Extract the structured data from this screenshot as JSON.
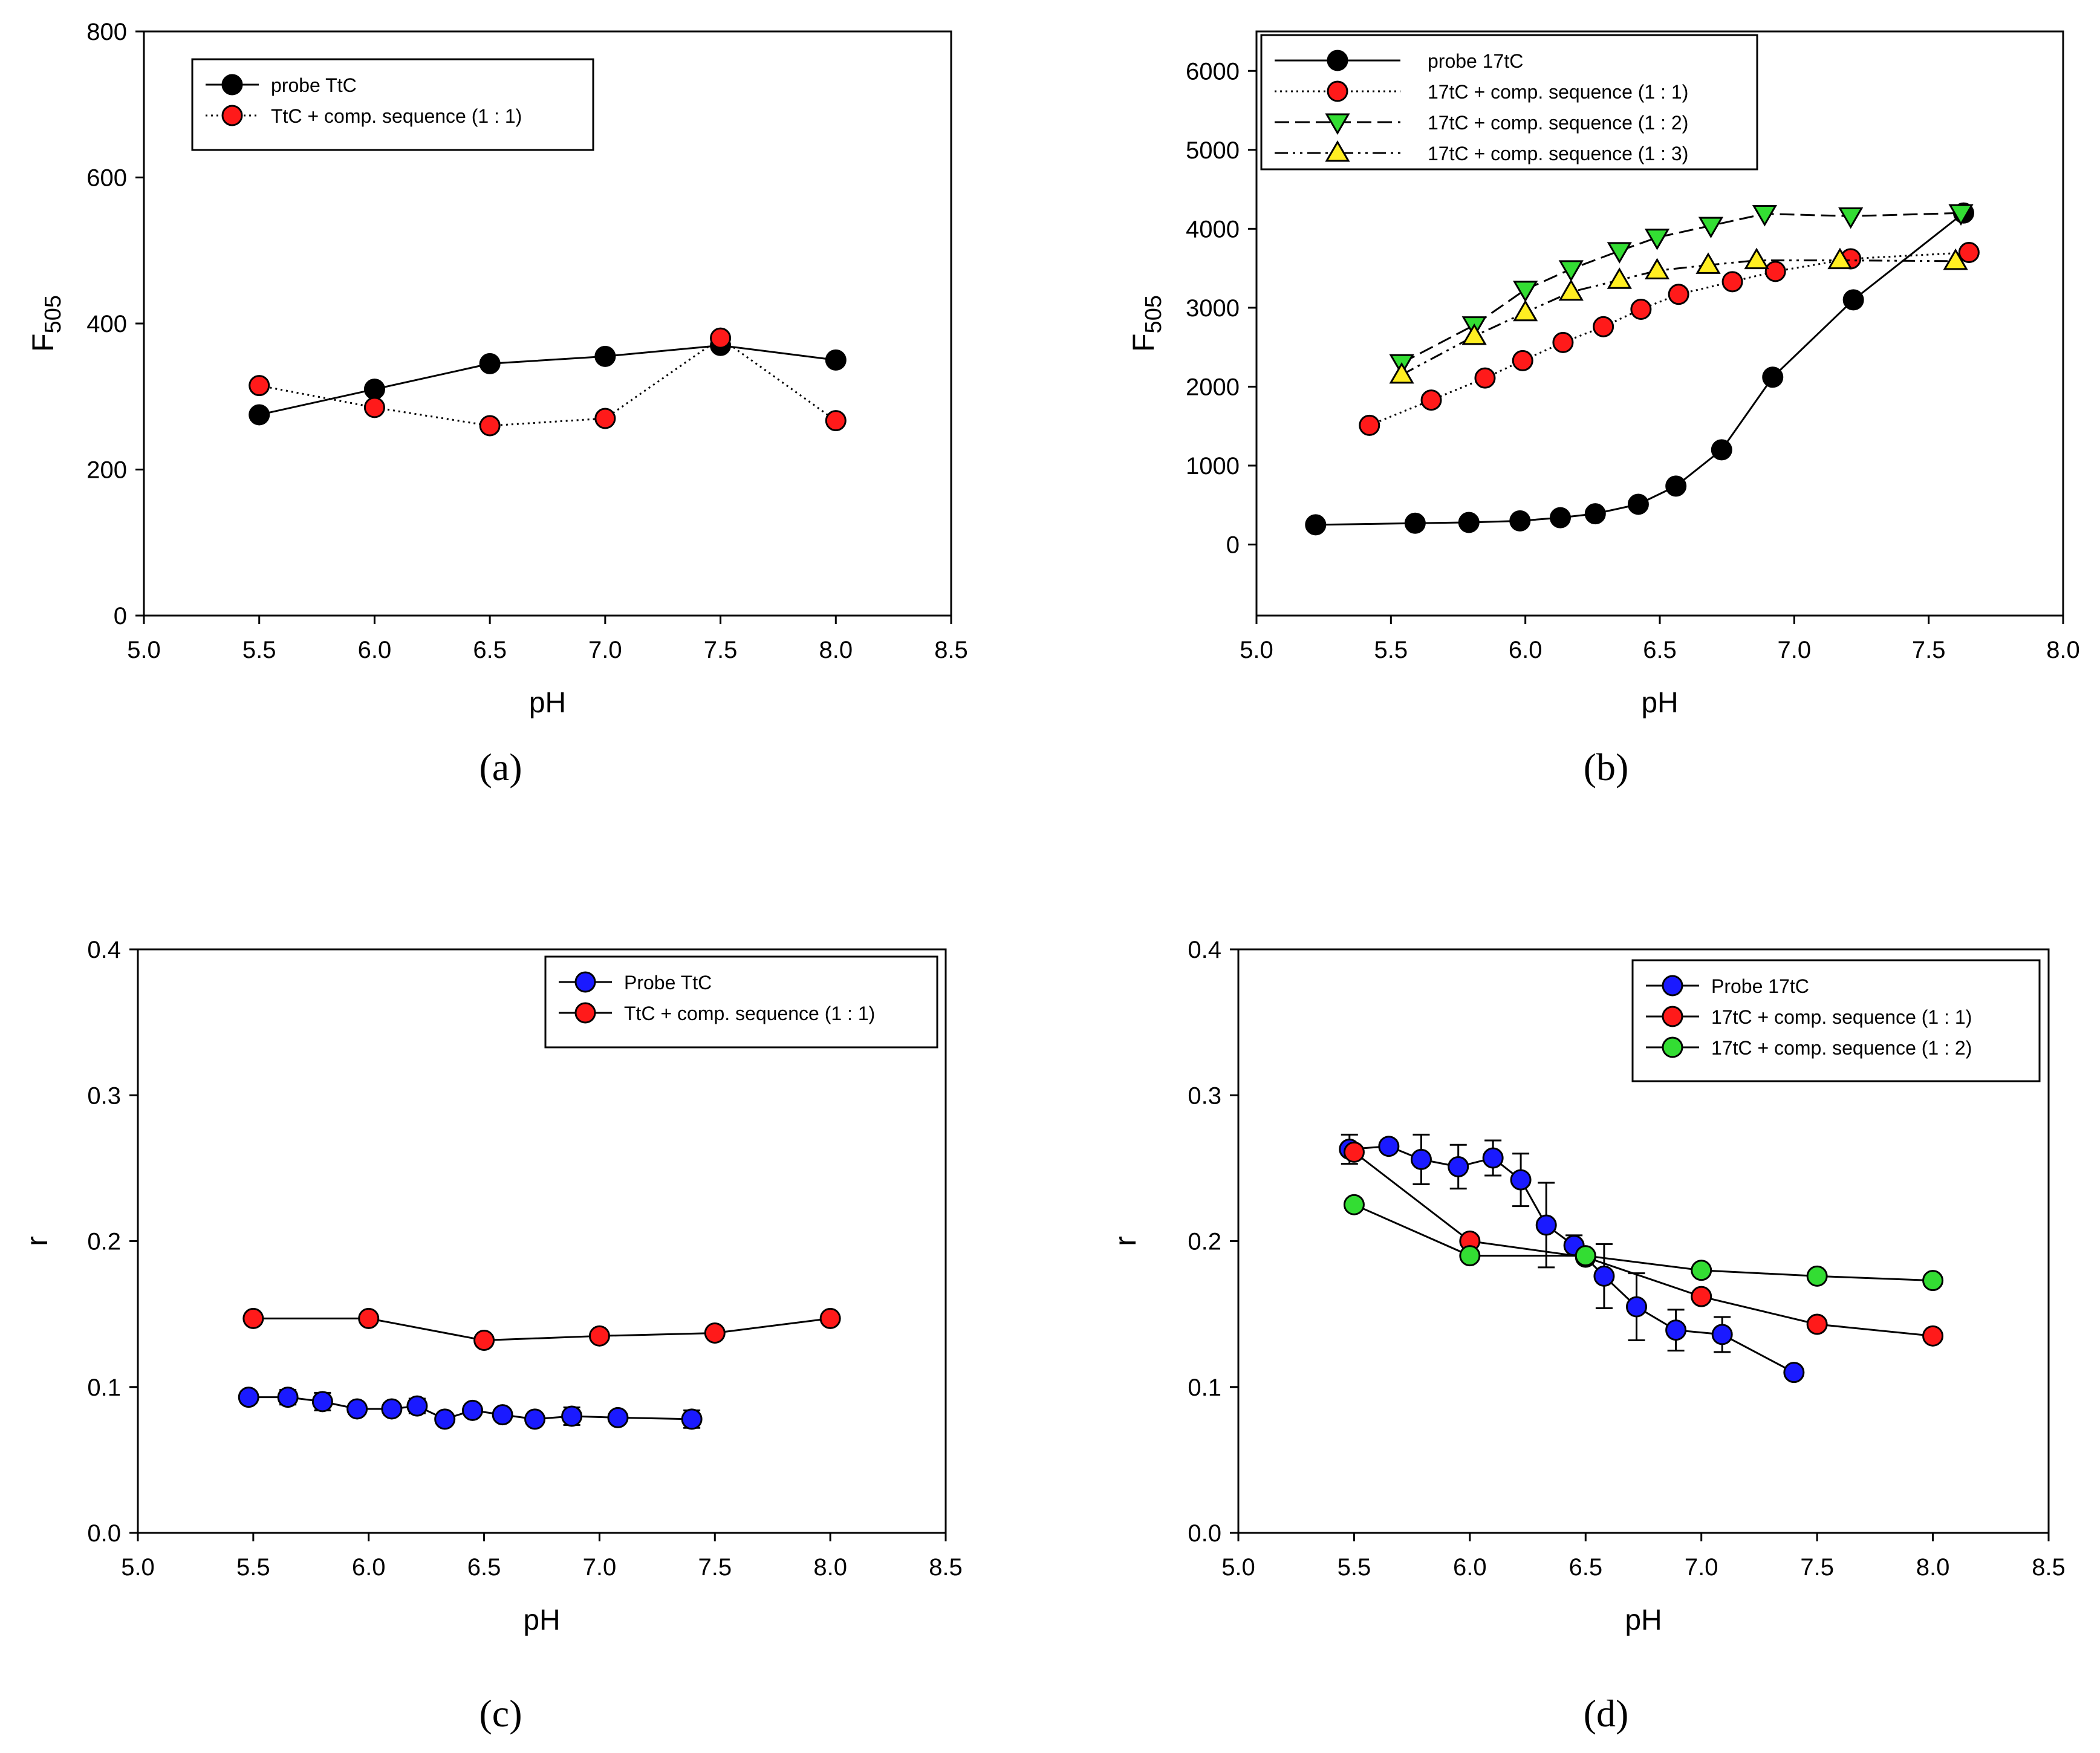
{
  "figure": {
    "panels": [
      {
        "caption": "(a)",
        "legend_border": true,
        "chart_data": {
          "type": "line",
          "title": "",
          "xlabel": "pH",
          "ylabel_main": "F",
          "ylabel_sub": "505",
          "xlim": [
            5.0,
            8.5
          ],
          "ylim": [
            0,
            800
          ],
          "xticks": [
            "5.0",
            "5.5",
            "6.0",
            "6.5",
            "7.0",
            "7.5",
            "8.0",
            "8.5"
          ],
          "yticks": [
            "0",
            "200",
            "400",
            "600",
            "800"
          ],
          "grid": false,
          "legend": "top-left",
          "series": [
            {
              "name": "probe TtC",
              "color": "#000000",
              "marker": "circle",
              "dash": "solid",
              "x": [
                5.5,
                6.0,
                6.5,
                7.0,
                7.5,
                8.0
              ],
              "y": [
                275,
                310,
                345,
                355,
                370,
                350
              ]
            },
            {
              "name": "TtC + comp. sequence (1 : 1)",
              "color": "#ff1a1a",
              "marker": "circle",
              "dash": "dotted",
              "x": [
                5.5,
                6.0,
                6.5,
                7.0,
                7.5,
                8.0
              ],
              "y": [
                315,
                285,
                260,
                270,
                380,
                267
              ]
            }
          ]
        }
      },
      {
        "caption": "(b)",
        "legend_border": true,
        "chart_data": {
          "type": "line",
          "title": "",
          "xlabel": "pH",
          "ylabel_main": "F",
          "ylabel_sub": "505",
          "xlim": [
            5.0,
            8.0
          ],
          "ylim": [
            -900,
            6500
          ],
          "xticks": [
            "5.0",
            "5.5",
            "6.0",
            "6.5",
            "7.0",
            "7.5",
            "8.0"
          ],
          "yticks": [
            "0",
            "1000",
            "2000",
            "3000",
            "4000",
            "5000",
            "6000"
          ],
          "grid": false,
          "legend": "top-left",
          "series": [
            {
              "name": "probe 17tC",
              "color": "#000000",
              "marker": "circle",
              "dash": "solid",
              "x": [
                5.22,
                5.59,
                5.79,
                5.98,
                6.13,
                6.26,
                6.42,
                6.56,
                6.73,
                6.92,
                7.22,
                7.63
              ],
              "y": [
                250,
                270,
                280,
                300,
                340,
                390,
                510,
                740,
                1200,
                2120,
                3100,
                4200
              ]
            },
            {
              "name": "17tC + comp. sequence (1 : 1)",
              "color": "#ff1a1a",
              "marker": "circle",
              "dash": "dotted",
              "x": [
                5.42,
                5.65,
                5.85,
                5.99,
                6.14,
                6.29,
                6.43,
                6.57,
                6.77,
                6.93,
                7.21,
                7.65
              ],
              "y": [
                1510,
                1830,
                2110,
                2330,
                2560,
                2760,
                2980,
                3170,
                3330,
                3460,
                3620,
                3700
              ]
            },
            {
              "name": "17tC + comp. sequence (1 : 2)",
              "color": "#33dd33",
              "marker": "triangle-down",
              "dash": "dashed",
              "x": [
                5.54,
                5.81,
                6.0,
                6.17,
                6.35,
                6.49,
                6.69,
                6.89,
                7.21,
                7.62
              ],
              "y": [
                2300,
                2780,
                3230,
                3490,
                3720,
                3890,
                4040,
                4190,
                4160,
                4200
              ]
            },
            {
              "name": "17tC + comp. sequence (1 : 3)",
              "color": "#ffee22",
              "marker": "triangle-up",
              "dash": "dashdotdot",
              "x": [
                5.54,
                5.81,
                6.0,
                6.17,
                6.35,
                6.49,
                6.68,
                6.86,
                7.17,
                7.6
              ],
              "y": [
                2150,
                2640,
                2940,
                3200,
                3350,
                3470,
                3540,
                3600,
                3600,
                3590
              ]
            }
          ]
        }
      },
      {
        "caption": "(c)",
        "legend_border": true,
        "chart_data": {
          "type": "line",
          "title": "",
          "xlabel": "pH",
          "ylabel_main": "r",
          "ylabel_sub": "",
          "xlim": [
            5.0,
            8.5
          ],
          "ylim": [
            0.0,
            0.4
          ],
          "xticks": [
            "5.0",
            "5.5",
            "6.0",
            "6.5",
            "7.0",
            "7.5",
            "8.0",
            "8.5"
          ],
          "yticks": [
            "0.0",
            "0.1",
            "0.2",
            "0.3",
            "0.4"
          ],
          "grid": false,
          "legend": "top-right",
          "series": [
            {
              "name": "Probe TtC",
              "color": "#1a1aff",
              "marker": "circle",
              "dash": "solid",
              "x": [
                5.48,
                5.65,
                5.8,
                5.95,
                6.1,
                6.21,
                6.33,
                6.45,
                6.58,
                6.72,
                6.88,
                7.08,
                7.4
              ],
              "y": [
                0.093,
                0.093,
                0.09,
                0.085,
                0.085,
                0.087,
                0.078,
                0.084,
                0.081,
                0.078,
                0.08,
                0.079,
                0.078
              ],
              "err": [
                0.004,
                0.005,
                0.006,
                0.003,
                0.004,
                0.005,
                0.003,
                0.004,
                0.003,
                0.003,
                0.006,
                0.003,
                0.006
              ]
            },
            {
              "name": "TtC + comp. sequence (1 : 1)",
              "color": "#ff1a1a",
              "marker": "circle",
              "dash": "solid",
              "x": [
                5.5,
                6.0,
                6.5,
                7.0,
                7.5,
                8.0
              ],
              "y": [
                0.147,
                0.147,
                0.132,
                0.135,
                0.137,
                0.147
              ]
            }
          ]
        }
      },
      {
        "caption": "(d)",
        "legend_border": true,
        "chart_data": {
          "type": "line",
          "title": "",
          "xlabel": "pH",
          "ylabel_main": "r",
          "ylabel_sub": "",
          "xlim": [
            5.0,
            8.5
          ],
          "ylim": [
            0.0,
            0.4
          ],
          "xticks": [
            "5.0",
            "5.5",
            "6.0",
            "6.5",
            "7.0",
            "7.5",
            "8.0",
            "8.5"
          ],
          "yticks": [
            "0.0",
            "0.1",
            "0.2",
            "0.3",
            "0.4"
          ],
          "grid": false,
          "legend": "top-right",
          "series": [
            {
              "name": "Probe 17tC",
              "color": "#1a1aff",
              "marker": "circle",
              "dash": "solid",
              "x": [
                5.48,
                5.65,
                5.79,
                5.95,
                6.1,
                6.22,
                6.33,
                6.45,
                6.58,
                6.72,
                6.89,
                7.09,
                7.4
              ],
              "y": [
                0.263,
                0.265,
                0.256,
                0.251,
                0.257,
                0.242,
                0.211,
                0.197,
                0.176,
                0.155,
                0.139,
                0.136,
                0.11
              ],
              "err": [
                0.01,
                0.004,
                0.017,
                0.015,
                0.012,
                0.018,
                0.029,
                0.007,
                0.022,
                0.023,
                0.014,
                0.012,
                0.0
              ]
            },
            {
              "name": "17tC + comp. sequence (1 : 1)",
              "color": "#ff1a1a",
              "marker": "circle",
              "dash": "solid",
              "x": [
                5.5,
                6.0,
                6.5,
                7.0,
                7.5,
                8.0
              ],
              "y": [
                0.261,
                0.2,
                0.189,
                0.162,
                0.143,
                0.135
              ]
            },
            {
              "name": "17tC + comp. sequence (1 : 2)",
              "color": "#33dd33",
              "marker": "circle",
              "dash": "solid",
              "x": [
                5.5,
                6.0,
                6.5,
                7.0,
                7.5,
                8.0
              ],
              "y": [
                0.225,
                0.19,
                0.19,
                0.18,
                0.176,
                0.173
              ]
            }
          ]
        }
      }
    ]
  }
}
